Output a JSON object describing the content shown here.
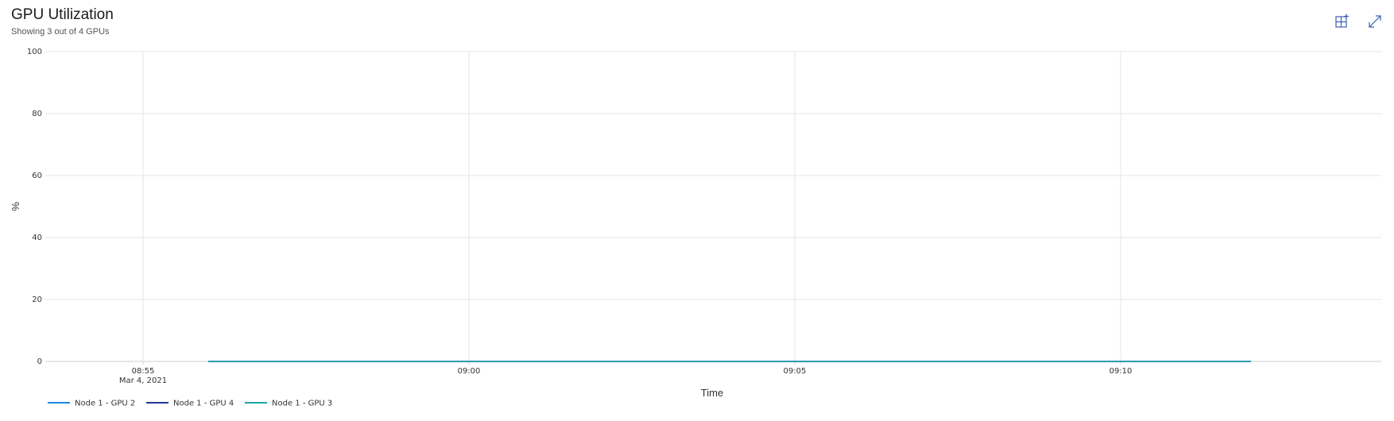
{
  "header": {
    "title": "GPU Utilization",
    "subtitle": "Showing 3 out of 4 GPUs",
    "pin_icon": "pin-to-dashboard-icon",
    "expand_icon": "expand-icon"
  },
  "colors": {
    "accent": "#3a5fb0",
    "grid": "#e6e6e6",
    "axis": "#cccccc"
  },
  "chart_data": {
    "type": "line",
    "title": "GPU Utilization",
    "xlabel": "Time",
    "ylabel": "%",
    "ylim": [
      0,
      100
    ],
    "yticks": [
      0,
      20,
      40,
      60,
      80,
      100
    ],
    "xlim_minutes": [
      -1.5,
      19
    ],
    "xticks": [
      {
        "minute": 0,
        "label": "08:55",
        "sublabel": "Mar 4, 2021"
      },
      {
        "minute": 5,
        "label": "09:00",
        "sublabel": ""
      },
      {
        "minute": 10,
        "label": "09:05",
        "sublabel": ""
      },
      {
        "minute": 15,
        "label": "09:10",
        "sublabel": ""
      }
    ],
    "grid": true,
    "legend_position": "bottom-left",
    "series": [
      {
        "name": "Node 1 - GPU 2",
        "color": "#1e88e5",
        "x_minutes": [
          1,
          17
        ],
        "values": [
          0,
          0
        ]
      },
      {
        "name": "Node 1 - GPU 4",
        "color": "#22349a",
        "x_minutes": [
          1,
          17
        ],
        "values": [
          0,
          0
        ]
      },
      {
        "name": "Node 1 - GPU 3",
        "color": "#1aa6a6",
        "x_minutes": [
          1,
          17
        ],
        "values": [
          0,
          0
        ]
      }
    ]
  }
}
